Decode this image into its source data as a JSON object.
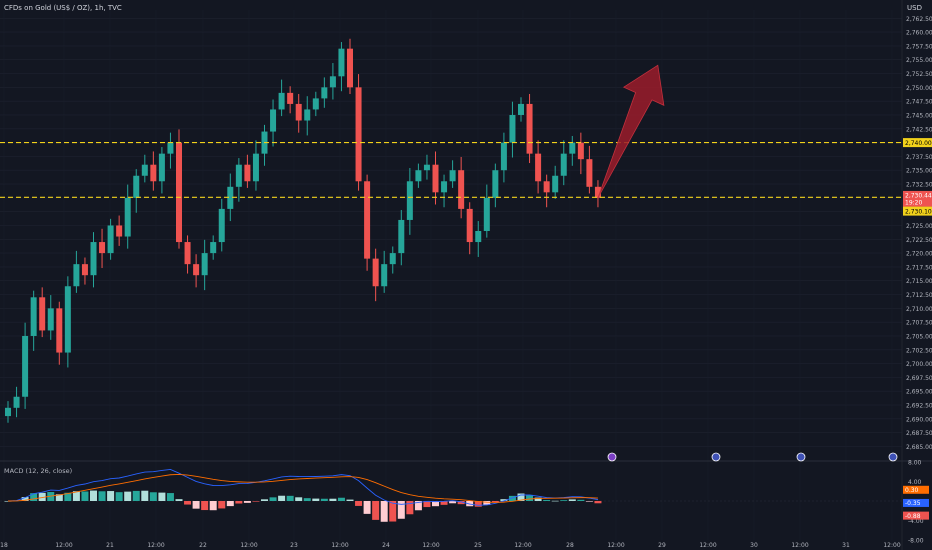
{
  "header": {
    "title": "CFDs on Gold (US$ / OZ), 1h, TVC",
    "currency": "USD"
  },
  "colors": {
    "background": "#131722",
    "up": "#26a69a",
    "down": "#ef5350",
    "level": "#f2d21b",
    "arrow": "#9b1c2a",
    "macd_line": "#2962ff",
    "signal_line": "#ff6d00"
  },
  "chart_data": [
    {
      "type": "candlestick",
      "title": "CFDs on Gold (US$ / OZ), 1h, TVC",
      "ylim": [
        2684,
        2764
      ],
      "y_ticks": [
        "2,762.50",
        "2,760.00",
        "2,757.50",
        "2,755.00",
        "2,752.50",
        "2,750.00",
        "2,747.50",
        "2,745.00",
        "2,742.50",
        "2,740.00",
        "2,737.50",
        "2,735.00",
        "2,732.50",
        "2,730.00",
        "2,727.50",
        "2,725.00",
        "2,722.50",
        "2,720.00",
        "2,717.50",
        "2,715.00",
        "2,712.50",
        "2,710.00",
        "2,707.50",
        "2,705.00",
        "2,702.50",
        "2,700.00",
        "2,697.50",
        "2,695.00",
        "2,692.50",
        "2,690.00",
        "2,687.50",
        "2,685.00"
      ],
      "x_ticks": [
        "18",
        "12:00",
        "21",
        "12:00",
        "22",
        "12:00",
        "23",
        "12:00",
        "24",
        "12:00",
        "25",
        "12:00",
        "28",
        "12:00",
        "29",
        "12:00",
        "30",
        "12:00",
        "31",
        "12:00"
      ],
      "closes": [
        2692,
        2694,
        2705,
        2712,
        2706,
        2710,
        2702,
        2714,
        2718,
        2716,
        2722,
        2720,
        2725,
        2723,
        2730,
        2734,
        2736,
        2733,
        2738,
        2740,
        2722,
        2718,
        2716,
        2720,
        2722,
        2728,
        2732,
        2736,
        2733,
        2738,
        2742,
        2746,
        2749,
        2747,
        2744,
        2746,
        2748,
        2750,
        2752,
        2757,
        2750,
        2733,
        2719,
        2714,
        2718,
        2720,
        2726,
        2733,
        2735,
        2736,
        2731,
        2733,
        2735,
        2728,
        2722,
        2724,
        2730,
        2735,
        2740,
        2745,
        2747,
        2738,
        2733,
        2731,
        2734,
        2738,
        2740,
        2737,
        2732,
        2730
      ],
      "levels": [
        {
          "price": 2740.0,
          "label": "2,740.00"
        },
        {
          "price": 2730.1,
          "label": "2,730.10"
        }
      ],
      "price_tags": [
        {
          "label": "2,740.00",
          "price": 2740.0,
          "color": "#f2d21b",
          "text_color": "#000000"
        },
        {
          "label": "2,730.44",
          "price": 2730.44,
          "color": "#ef5350",
          "text_color": "#ffffff"
        },
        {
          "label": "19:20",
          "price": 2729.2,
          "color": "#ef5350",
          "text_color": "#ffffff"
        },
        {
          "label": "2,730.10",
          "price": 2727.6,
          "color": "#f2d21b",
          "text_color": "#000000"
        }
      ],
      "projection": {
        "from": {
          "bar": 69,
          "price": 2730
        },
        "to": {
          "bar": 76,
          "price": 2754
        }
      }
    },
    {
      "type": "bar",
      "title": "MACD (12, 26, close)",
      "ylim": [
        -8,
        8
      ],
      "y_ticks": [
        "8.00",
        "4.00",
        "-4.00",
        "-8.00"
      ],
      "tags": [
        {
          "label": "0.30",
          "value": 2.3,
          "color": "#ff6d00"
        },
        {
          "label": "-0.35",
          "value": -0.4,
          "color": "#2962ff"
        },
        {
          "label": "-0.88",
          "value": -3.0,
          "color": "#ef5350"
        }
      ]
    }
  ]
}
